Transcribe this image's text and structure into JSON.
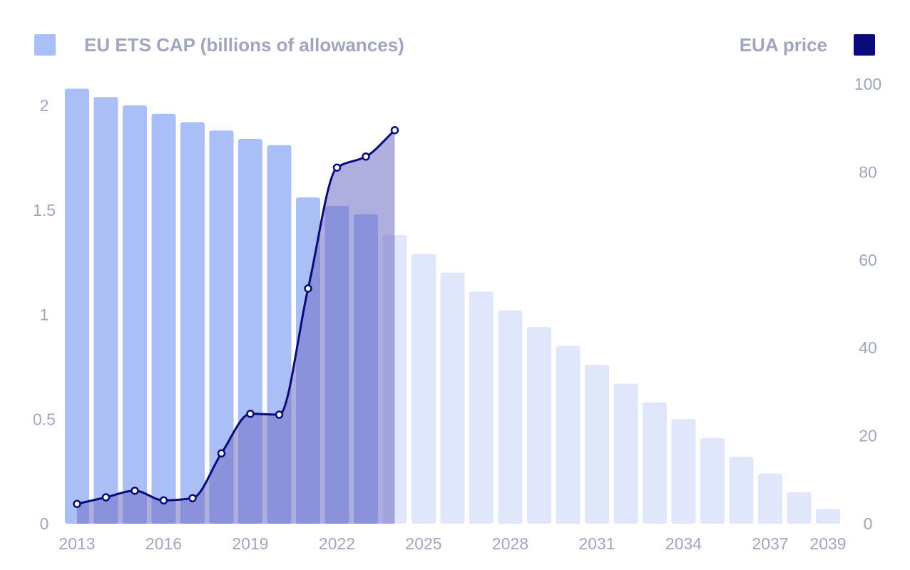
{
  "chart_data": {
    "type": "bar+line",
    "legend": {
      "cap_label": "EU ETS CAP (billions of allowances)",
      "price_label": "EUA price",
      "placement": "top"
    },
    "colors": {
      "cap_historical": "#abbff7",
      "cap_projected": "#e0e7fb",
      "price_line": "#0a0a7a",
      "price_area": "#6d6dc4",
      "tick_text": "#a0a6c0"
    },
    "x": [
      2013,
      2014,
      2015,
      2016,
      2017,
      2018,
      2019,
      2020,
      2021,
      2022,
      2023,
      2024,
      2025,
      2026,
      2027,
      2028,
      2029,
      2030,
      2031,
      2032,
      2033,
      2034,
      2035,
      2036,
      2037,
      2038,
      2039
    ],
    "x_tick_labels": [
      "2013",
      "2016",
      "2019",
      "2022",
      "2025",
      "2028",
      "2031",
      "2034",
      "2037",
      "2039"
    ],
    "x_tick_years": [
      2013,
      2016,
      2019,
      2022,
      2025,
      2028,
      2031,
      2034,
      2037,
      2039
    ],
    "cap": {
      "name": "EU ETS CAP (billions of allowances)",
      "values": [
        2.08,
        2.04,
        2.0,
        1.96,
        1.92,
        1.88,
        1.84,
        1.81,
        1.56,
        1.52,
        1.48,
        1.38,
        1.29,
        1.2,
        1.11,
        1.02,
        0.94,
        0.85,
        0.76,
        0.67,
        0.58,
        0.5,
        0.41,
        0.32,
        0.24,
        0.15,
        0.07
      ],
      "historical_until": 2023
    },
    "price": {
      "name": "EUA price",
      "x": [
        2013,
        2014,
        2015,
        2016,
        2017,
        2018,
        2019,
        2020,
        2021,
        2022,
        2023,
        2024
      ],
      "values": [
        4.5,
        6,
        7.5,
        5.3,
        5.8,
        16,
        25,
        24.8,
        53.5,
        81,
        83.5,
        89.5
      ]
    },
    "y_left": {
      "range": [
        0,
        2.1
      ],
      "ticks": [
        0,
        0.5,
        1,
        1.5,
        2
      ],
      "tick_labels": [
        "0",
        "0.5",
        "1",
        "1.5",
        "2"
      ]
    },
    "y_right": {
      "range": [
        0,
        100
      ],
      "ticks": [
        0,
        20,
        40,
        60,
        80,
        100
      ],
      "tick_labels": [
        "0",
        "20",
        "40",
        "60",
        "80",
        "100"
      ]
    },
    "grid": false
  }
}
